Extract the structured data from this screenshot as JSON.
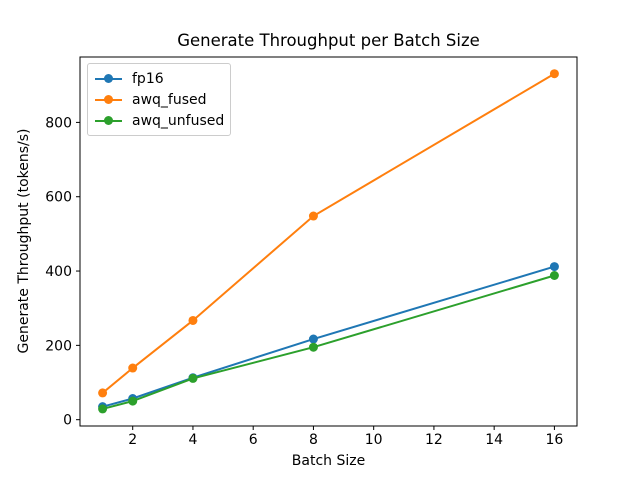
{
  "chart_data": {
    "type": "line",
    "title": "Generate Throughput per Batch Size",
    "xlabel": "Batch Size",
    "ylabel": "Generate Throughput (tokens/s)",
    "x": [
      1,
      2,
      4,
      8,
      16
    ],
    "series": [
      {
        "name": "fp16",
        "color": "#1f77b4",
        "values": [
          35,
          57,
          113,
          217,
          412
        ]
      },
      {
        "name": "awq_fused",
        "color": "#ff7f0e",
        "values": [
          72,
          139,
          267,
          548,
          931
        ]
      },
      {
        "name": "awq_unfused",
        "color": "#2ca02c",
        "values": [
          29,
          50,
          111,
          195,
          388
        ]
      }
    ],
    "xticks": [
      2,
      4,
      6,
      8,
      10,
      12,
      14,
      16
    ],
    "yticks": [
      0,
      200,
      400,
      600,
      800
    ],
    "xlim": [
      0.25,
      16.75
    ],
    "ylim": [
      -17,
      976
    ],
    "legend_position": "upper left",
    "grid": false,
    "axis_color": "#000000",
    "background_color": "#ffffff"
  }
}
